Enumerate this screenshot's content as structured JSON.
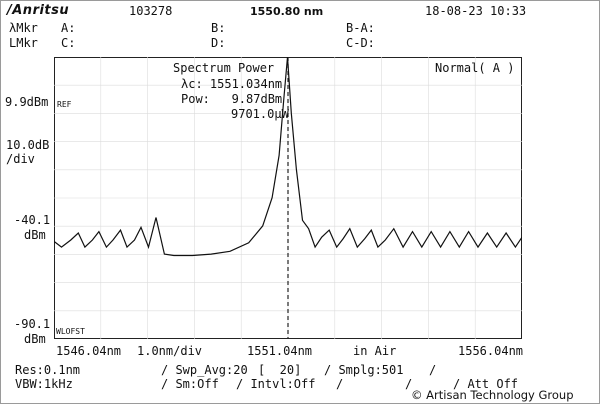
{
  "header": {
    "brand": "/Anritsu",
    "model": "103278",
    "center_freq": "1550.80 nm",
    "datetime": "18-08-23 10:33",
    "lambda_mkr_label": "λMkr",
    "level_mkr_label": "LMkr",
    "mkr_a": "A:",
    "mkr_b": "B:",
    "mkr_c": "C:",
    "mkr_d": "D:",
    "mkr_ba": "B-A:",
    "mkr_cd": "C-D:"
  },
  "plot_labels": {
    "analysis_title": "Spectrum Power",
    "lambda_c": "λc: 1551.034nm",
    "pow": "Pow:   9.87dBm",
    "pow_mw": "9701.0μW",
    "mode": "Normal( A )",
    "ref_tag": "REF",
    "wl_offset_tag": "WLOFST"
  },
  "y_axis": {
    "ref_level": "9.9dBm",
    "scale_value": "10.0dB",
    "scale_unit": "/div",
    "mid_value": "-40.1",
    "mid_unit": "dBm",
    "bottom_value": "-90.1",
    "bottom_unit": "dBm"
  },
  "x_axis": {
    "start": "1546.04nm",
    "span_div": "1.0nm/div",
    "center": "1551.04nm",
    "medium": "in Air",
    "stop": "1556.04nm"
  },
  "footer": {
    "res": "Res:0.1nm",
    "vbw": "VBW:1kHz",
    "swp_avg": "/ Swp_Avg:20",
    "swp_avg_count": "[  20]",
    "smplg": "/ Smplg:501",
    "sm": "/ Sm:Off",
    "intvl": "/ Intvl:Off",
    "att": "/ Att Off",
    "slash1": "/",
    "slash2": "/",
    "slash3": "/"
  },
  "watermark": "© Artisan Technology Group",
  "chart_data": {
    "type": "line",
    "x_unit": "nm",
    "y_unit": "dBm",
    "xlim": [
      1546.04,
      1556.04
    ],
    "ylim": [
      -90.1,
      9.9
    ],
    "grid": true,
    "peak": {
      "x": 1551.034,
      "y": 9.87
    },
    "ripple_floor": -57.5,
    "ripple_peak": -52.0,
    "ripple_period_nm": 0.8,
    "shoulder_floor": -60.5,
    "marker_x": 1551.04,
    "series": [
      {
        "x": [
          1546.04,
          1546.2,
          1546.4,
          1546.56,
          1546.7,
          1546.86,
          1547.0,
          1547.16,
          1547.3,
          1547.46,
          1547.6,
          1547.76,
          1547.9,
          1548.06,
          1548.22,
          1548.4,
          1548.6,
          1548.8,
          1549.0,
          1549.4,
          1549.8,
          1550.2,
          1550.5,
          1550.7,
          1550.85,
          1550.95,
          1551.03,
          1551.11,
          1551.22,
          1551.35,
          1551.48,
          1551.62,
          1551.76,
          1551.92,
          1552.08,
          1552.22,
          1552.36,
          1552.52,
          1552.68,
          1552.82,
          1552.96,
          1553.12,
          1553.3,
          1553.5,
          1553.7,
          1553.9,
          1554.1,
          1554.3,
          1554.5,
          1554.7,
          1554.9,
          1555.1,
          1555.3,
          1555.5,
          1555.7,
          1555.9,
          1556.04
        ],
        "y": [
          -55.5,
          -57.5,
          -55.0,
          -52.5,
          -57.5,
          -55.0,
          -52.0,
          -57.5,
          -55.0,
          -51.5,
          -57.5,
          -55.0,
          -50.5,
          -57.5,
          -47.0,
          -60.0,
          -60.5,
          -60.5,
          -60.5,
          -60.0,
          -59.0,
          -56.0,
          -50.0,
          -40.0,
          -25.0,
          -5.0,
          9.87,
          -10.0,
          -30.0,
          -48.0,
          -51.0,
          -57.5,
          -54.0,
          -51.5,
          -57.5,
          -54.5,
          -51.0,
          -57.5,
          -54.5,
          -51.5,
          -57.5,
          -55.0,
          -51.0,
          -57.5,
          -52.0,
          -57.5,
          -52.0,
          -57.5,
          -52.0,
          -57.5,
          -52.0,
          -57.5,
          -52.5,
          -57.5,
          -52.5,
          -57.5,
          -54.0
        ]
      }
    ]
  }
}
